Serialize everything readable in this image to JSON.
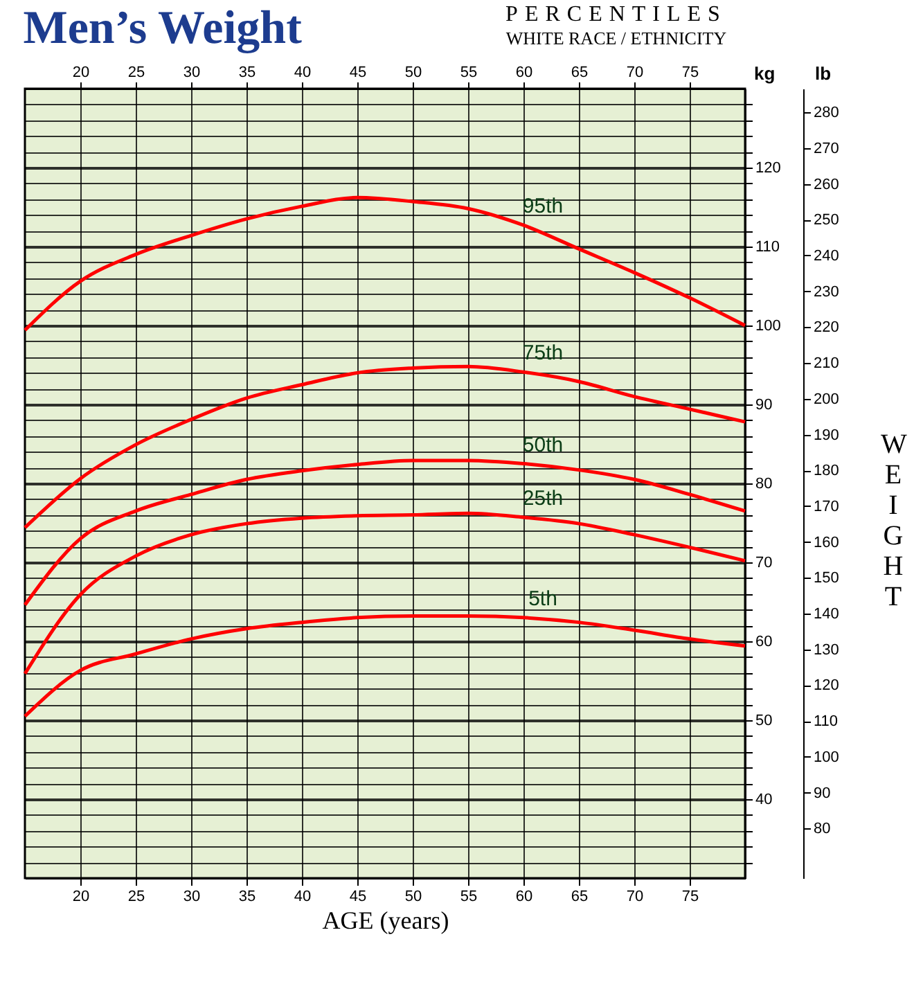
{
  "chart_data": {
    "type": "line",
    "title": "Men’s Weight",
    "subtitle": "PERCENTILES",
    "annotations": [
      "WHITE RACE / ETHNICITY",
      "WEIGHT"
    ],
    "xlabel": "AGE (years)",
    "ylabel": "kg",
    "y2label": "lb",
    "x": [
      15,
      20,
      25,
      30,
      35,
      40,
      45,
      50,
      55,
      60,
      65,
      70,
      75,
      80
    ],
    "series": [
      {
        "name": "95th",
        "color": "#ff0000",
        "values": [
          99.4,
          105.6,
          109,
          111.4,
          113.5,
          115.1,
          116.2,
          115.7,
          114.8,
          112.7,
          109.7,
          106.7,
          103.5,
          100
        ]
      },
      {
        "name": "75th",
        "color": "#ff0000",
        "values": [
          74.4,
          80.6,
          84.9,
          88.1,
          90.8,
          92.5,
          94,
          94.6,
          94.8,
          94.1,
          92.9,
          91,
          89.4,
          87.8
        ]
      },
      {
        "name": "50th",
        "color": "#ff0000",
        "values": [
          64.6,
          73,
          76.5,
          78.6,
          80.5,
          81.6,
          82.4,
          82.9,
          82.9,
          82.5,
          81.7,
          80.5,
          78.6,
          76.5
        ]
      },
      {
        "name": "25th",
        "color": "#ff0000",
        "values": [
          55.9,
          65.9,
          70.8,
          73.5,
          74.9,
          75.6,
          75.9,
          76,
          76.2,
          75.7,
          74.9,
          73.5,
          71.9,
          70.2
        ]
      },
      {
        "name": "5th",
        "color": "#ff0000",
        "values": [
          50.5,
          56.3,
          58.4,
          60.3,
          61.6,
          62.4,
          63,
          63.2,
          63.2,
          63,
          62.4,
          61.4,
          60.3,
          59.4
        ]
      }
    ],
    "xlim": [
      15,
      80
    ],
    "xticks": [
      20,
      25,
      30,
      35,
      40,
      45,
      50,
      55,
      60,
      65,
      70,
      75
    ],
    "x2lim": [
      15,
      80
    ],
    "x2ticks": [
      20,
      25,
      30,
      35,
      40,
      45,
      50,
      55,
      60,
      65,
      70,
      75
    ],
    "ylim": [
      30,
      130
    ],
    "yticks": [
      {
        "value": 32,
        "label": null
      },
      {
        "value": 34,
        "label": null
      },
      {
        "value": 36,
        "label": null
      },
      {
        "value": 38,
        "label": null
      },
      40,
      {
        "value": 42,
        "label": null
      },
      {
        "value": 44,
        "label": null
      },
      {
        "value": 46,
        "label": null
      },
      {
        "value": 48,
        "label": null
      },
      50,
      {
        "value": 52,
        "label": null
      },
      {
        "value": 54,
        "label": null
      },
      {
        "value": 56,
        "label": null
      },
      {
        "value": 58,
        "label": null
      },
      60,
      {
        "value": 62,
        "label": null
      },
      {
        "value": 64,
        "label": null
      },
      {
        "value": 66,
        "label": null
      },
      {
        "value": 68,
        "label": null
      },
      70,
      {
        "value": 72,
        "label": null
      },
      {
        "value": 74,
        "label": null
      },
      {
        "value": 76,
        "label": null
      },
      {
        "value": 78,
        "label": null
      },
      80,
      {
        "value": 82,
        "label": null
      },
      {
        "value": 84,
        "label": null
      },
      {
        "value": 86,
        "label": null
      },
      {
        "value": 88,
        "label": null
      },
      90,
      {
        "value": 92,
        "label": null
      },
      {
        "value": 94,
        "label": null
      },
      {
        "value": 96,
        "label": null
      },
      {
        "value": 98,
        "label": null
      },
      100,
      {
        "value": 102,
        "label": null
      },
      {
        "value": 104,
        "label": null
      },
      {
        "value": 106,
        "label": null
      },
      {
        "value": 108,
        "label": null
      },
      110,
      {
        "value": 112,
        "label": null
      },
      {
        "value": 114,
        "label": null
      },
      {
        "value": 116,
        "label": null
      },
      {
        "value": 118,
        "label": null
      },
      120,
      {
        "value": 122,
        "label": null
      },
      {
        "value": 124,
        "label": null
      },
      {
        "value": 126,
        "label": null
      },
      {
        "value": 128,
        "label": null
      }
    ],
    "y2lim": [
      66.14,
      286.6
    ],
    "y2ticks": [
      80,
      90,
      100,
      110,
      120,
      130,
      140,
      150,
      160,
      170,
      180,
      190,
      200,
      210,
      220,
      230,
      240,
      250,
      260,
      270,
      280
    ],
    "grid": true
  }
}
